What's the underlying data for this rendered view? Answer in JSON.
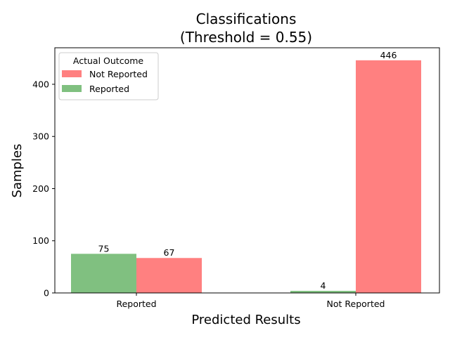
{
  "chart_data": {
    "type": "bar",
    "title": "Classifications",
    "subtitle": "(Threshold = 0.55)",
    "xlabel": "Predicted Results",
    "ylabel": "Samples",
    "categories": [
      "Reported",
      "Not Reported"
    ],
    "ylim": [
      0,
      470
    ],
    "yticks": [
      0,
      100,
      200,
      300,
      400
    ],
    "series": [
      {
        "name": "Reported",
        "color": "#80c080",
        "values": [
          75,
          4
        ]
      },
      {
        "name": "Not Reported",
        "color": "#ff8080",
        "values": [
          67,
          446
        ]
      }
    ],
    "legend": {
      "title": "Actual Outcome",
      "position": "top-left",
      "entries": [
        {
          "label": "Not Reported",
          "color": "#ff8080"
        },
        {
          "label": "Reported",
          "color": "#80c080"
        }
      ]
    },
    "grid": false
  }
}
